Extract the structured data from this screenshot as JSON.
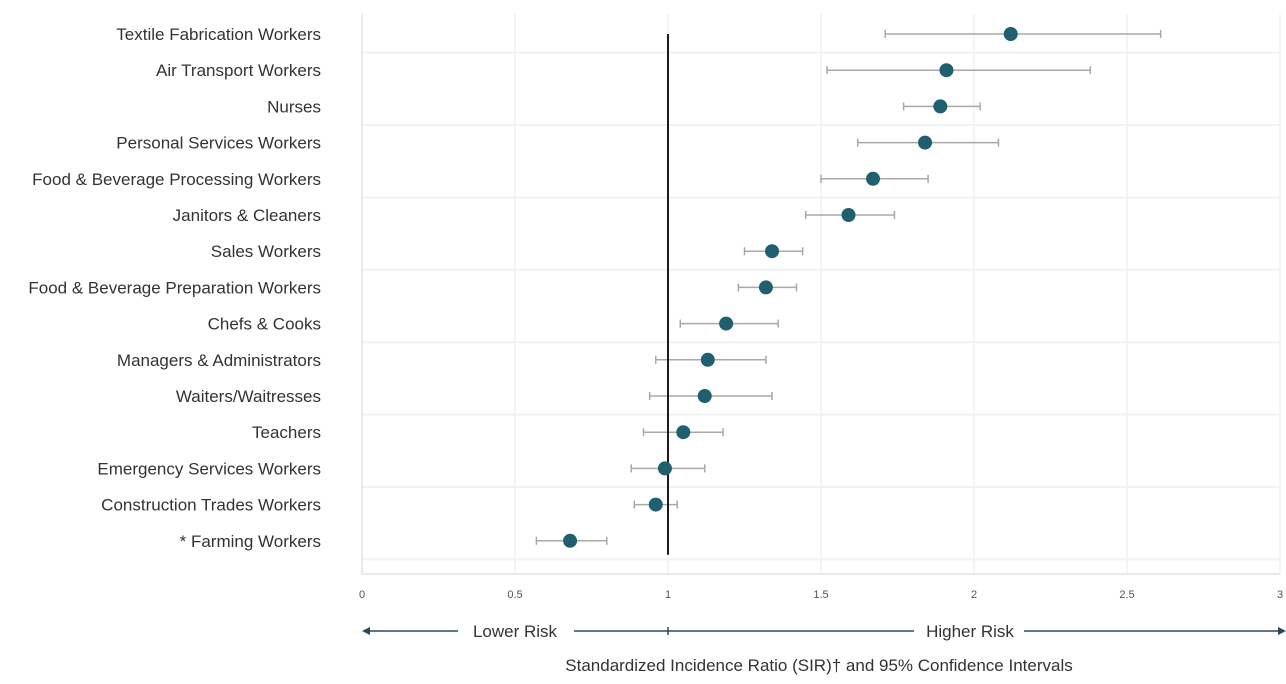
{
  "chart_data": {
    "type": "scatter",
    "title": "",
    "xlabel": "Standardized Incidence Ratio (SIR)† and 95% Confidence Intervals",
    "ylabel": "",
    "xlim": [
      0,
      3
    ],
    "x_ticks": [
      0,
      0.5,
      1,
      1.5,
      2,
      2.5,
      3
    ],
    "x_tick_labels": [
      "0",
      "0.5",
      "1",
      "1.5",
      "2",
      "2.5",
      "3"
    ],
    "reference_line": 1,
    "grid": true,
    "legend": "none",
    "risk_labels": {
      "lower": "Lower Risk",
      "higher": "Higher Risk"
    },
    "categories": [
      "Textile Fabrication Workers",
      "Air Transport Workers",
      "Nurses",
      "Personal Services Workers",
      "Food & Beverage Processing Workers",
      "Janitors & Cleaners",
      "Sales Workers",
      "Food & Beverage Preparation Workers",
      "Chefs & Cooks",
      "Managers & Administrators",
      "Waiters/Waitresses",
      "Teachers",
      "Emergency Services Workers",
      "Construction Trades Workers",
      "* Farming Workers"
    ],
    "values": [
      2.12,
      1.91,
      1.89,
      1.84,
      1.67,
      1.59,
      1.34,
      1.32,
      1.19,
      1.13,
      1.12,
      1.05,
      0.99,
      0.96,
      0.68
    ],
    "ci_lower": [
      1.71,
      1.52,
      1.77,
      1.62,
      1.5,
      1.45,
      1.25,
      1.23,
      1.04,
      0.96,
      0.94,
      0.92,
      0.88,
      0.89,
      0.57
    ],
    "ci_upper": [
      2.61,
      2.38,
      2.02,
      2.08,
      1.85,
      1.74,
      1.44,
      1.42,
      1.36,
      1.32,
      1.34,
      1.18,
      1.12,
      1.03,
      0.8
    ],
    "colors": {
      "point": "#1f5f6e",
      "ci_line": "#a8a8a8",
      "reference": "#1a1a1a",
      "arrow": "#2a4a5a",
      "grid": "#e8e8e8"
    }
  }
}
